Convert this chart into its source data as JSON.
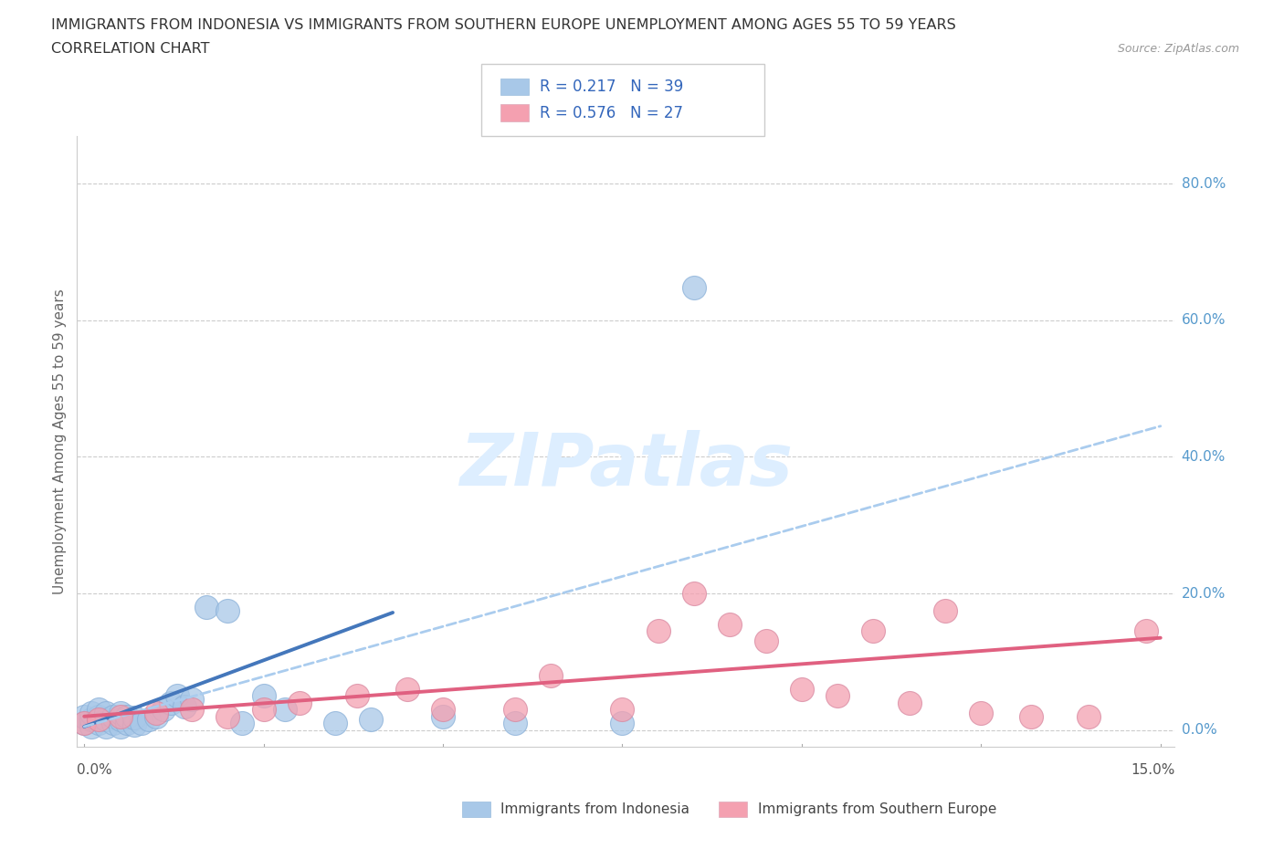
{
  "title_line1": "IMMIGRANTS FROM INDONESIA VS IMMIGRANTS FROM SOUTHERN EUROPE UNEMPLOYMENT AMONG AGES 55 TO 59 YEARS",
  "title_line2": "CORRELATION CHART",
  "source": "Source: ZipAtlas.com",
  "ylabel": "Unemployment Among Ages 55 to 59 years",
  "ytick_labels": [
    "0.0%",
    "20.0%",
    "40.0%",
    "60.0%",
    "80.0%"
  ],
  "ytick_values": [
    0.0,
    0.2,
    0.4,
    0.6,
    0.8
  ],
  "xlim": [
    -0.001,
    0.152
  ],
  "ylim": [
    -0.025,
    0.87
  ],
  "color_indonesia": "#a8c8e8",
  "color_indonesia_border": "#aaaacc",
  "color_s_europe": "#f4a0b0",
  "color_s_europe_border": "#ccaabb",
  "color_blue_line": "#4477bb",
  "color_pink_line": "#e06080",
  "color_dash_line": "#aaccee",
  "background_color": "#ffffff",
  "watermark_color": "#ddeeff",
  "indo_x": [
    0.0,
    0.0,
    0.001,
    0.001,
    0.001,
    0.002,
    0.002,
    0.002,
    0.003,
    0.003,
    0.003,
    0.004,
    0.004,
    0.005,
    0.005,
    0.005,
    0.006,
    0.006,
    0.007,
    0.007,
    0.008,
    0.009,
    0.01,
    0.011,
    0.012,
    0.013,
    0.014,
    0.015,
    0.017,
    0.02,
    0.022,
    0.025,
    0.028,
    0.035,
    0.04,
    0.05,
    0.06,
    0.075,
    0.085
  ],
  "indo_y": [
    0.01,
    0.02,
    0.005,
    0.015,
    0.025,
    0.01,
    0.02,
    0.03,
    0.005,
    0.015,
    0.025,
    0.01,
    0.02,
    0.005,
    0.015,
    0.025,
    0.01,
    0.02,
    0.008,
    0.018,
    0.01,
    0.015,
    0.02,
    0.03,
    0.04,
    0.05,
    0.035,
    0.045,
    0.18,
    0.175,
    0.01,
    0.05,
    0.03,
    0.01,
    0.015,
    0.02,
    0.01,
    0.01,
    0.648
  ],
  "se_x": [
    0.0,
    0.002,
    0.005,
    0.01,
    0.015,
    0.02,
    0.025,
    0.03,
    0.038,
    0.045,
    0.05,
    0.06,
    0.065,
    0.075,
    0.08,
    0.085,
    0.09,
    0.095,
    0.1,
    0.105,
    0.11,
    0.115,
    0.12,
    0.125,
    0.132,
    0.14,
    0.148
  ],
  "se_y": [
    0.01,
    0.015,
    0.02,
    0.025,
    0.03,
    0.02,
    0.03,
    0.04,
    0.05,
    0.06,
    0.03,
    0.03,
    0.08,
    0.03,
    0.145,
    0.2,
    0.155,
    0.13,
    0.06,
    0.05,
    0.145,
    0.04,
    0.175,
    0.025,
    0.02,
    0.02,
    0.145
  ],
  "blue_line_x": [
    0.0,
    0.043
  ],
  "blue_line_y": [
    0.005,
    0.172
  ],
  "dash_line_x": [
    0.0,
    0.15
  ],
  "dash_line_y": [
    0.005,
    0.445
  ],
  "pink_line_x": [
    0.0,
    0.15
  ],
  "pink_line_y": [
    0.02,
    0.135
  ]
}
